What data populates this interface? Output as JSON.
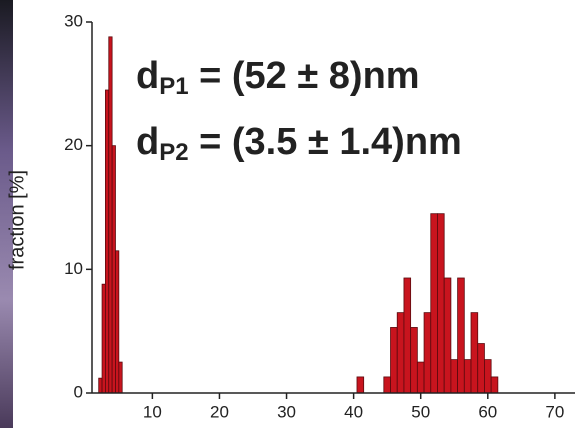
{
  "chart_data": {
    "type": "histogram",
    "y_label": "fraction [%]",
    "annotations": [
      {
        "text": "d",
        "subscript": "P1",
        "rest": " = (52 ± 8)nm"
      },
      {
        "text": "d",
        "subscript": "P2",
        "rest": " = (3.5 ± 1.4)nm"
      }
    ],
    "bins": [
      2.0,
      2.5,
      3.0,
      3.5,
      4.0,
      4.5,
      5.0,
      5.5,
      40.5,
      41.5,
      44.5,
      45.5,
      46.5,
      47.5,
      48.5,
      49.5,
      50.5,
      51.5,
      52.5,
      53.5,
      54.5,
      55.5,
      56.5,
      57.5,
      58.5,
      59.5,
      60.5,
      61.5
    ],
    "values": [
      1.2,
      8.8,
      24.5,
      28.8,
      20,
      11.5,
      2.5,
      0,
      1.3,
      0,
      1.3,
      5.3,
      6.5,
      9.3,
      5.3,
      2.5,
      6.5,
      14.5,
      14.5,
      9.3,
      2.7,
      9.3,
      2.7,
      6.5,
      4.0,
      2.7,
      1.3
    ],
    "color": "#c8141e",
    "xlim": [
      1,
      73
    ],
    "ylim": [
      0,
      30
    ],
    "xticks": [
      10,
      20,
      30,
      40,
      50,
      60,
      70
    ],
    "yticks": [
      0,
      10,
      20,
      30
    ]
  }
}
